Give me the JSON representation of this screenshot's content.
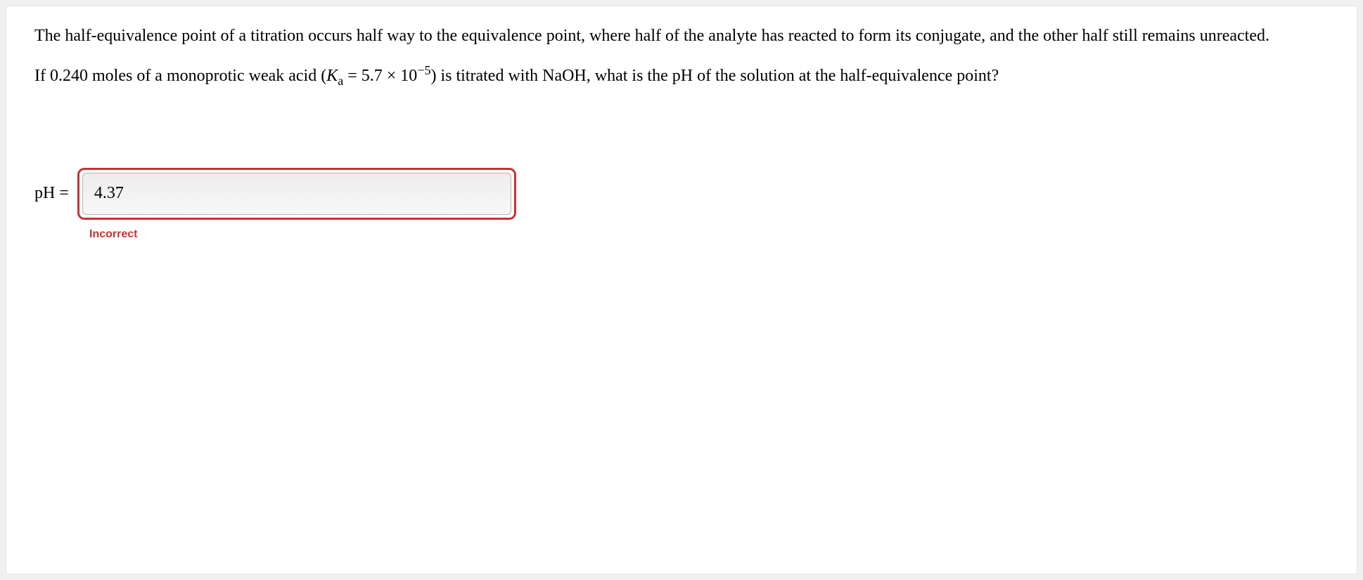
{
  "question": {
    "paragraph1": "The half-equivalence point of a titration occurs half way to the equivalence point, where half of the analyte has reacted to form its conjugate, and the other half still remains unreacted.",
    "paragraph2_prefix": "If 0.240 moles of a monoprotic weak acid (",
    "ka_symbol": "K",
    "ka_subscript": "a",
    "eq_text": " = 5.7 × 10",
    "exponent": "−5",
    "paragraph2_suffix": ") is titrated with NaOH, what is the pH of the solution at the half-equivalence point?"
  },
  "answer": {
    "label": "pH =",
    "value": "4.37",
    "feedback": "Incorrect"
  },
  "colors": {
    "page_bg": "#f0f0f0",
    "container_bg": "#ffffff",
    "text": "#000000",
    "error_border": "#c83232",
    "error_text": "#c83232",
    "input_border": "#b5b5b5",
    "input_bg_top": "#ededed",
    "input_bg_bottom": "#f7f7f7"
  }
}
